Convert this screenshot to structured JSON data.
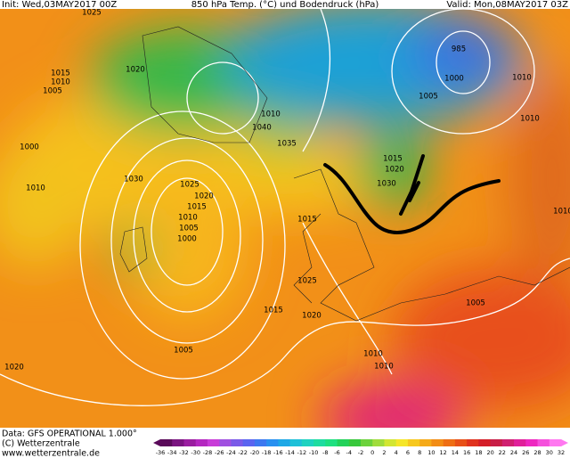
{
  "header": {
    "init": "Init: Wed,03MAY2017 00Z",
    "title": "850 hPa Temp. (°C) und Bodendruck (hPa)",
    "valid": "Valid: Mon,08MAY2017 03Z"
  },
  "isobar_labels": [
    1025,
    1015,
    1010,
    1005,
    1020,
    1000,
    1010,
    1030,
    1025,
    1020,
    1015,
    1010,
    1005,
    1000,
    1040,
    1035,
    1010,
    1015,
    1020,
    1030,
    985,
    1005,
    1000,
    1010,
    1010,
    1025,
    1015,
    1020,
    1005,
    1005,
    1015,
    1010,
    1020,
    1010,
    1010
  ],
  "footer": {
    "data": "Data: GFS OPERATIONAL 1.000°",
    "copyright": "(C) Wetterzentrale",
    "url": "www.wetterzentrale.de"
  },
  "colorbar": {
    "labels": [
      -36,
      -34,
      -32,
      -30,
      -28,
      -26,
      -24,
      -22,
      -20,
      -18,
      -16,
      -14,
      -12,
      -10,
      -8,
      -6,
      -4,
      -2,
      0,
      2,
      4,
      6,
      8,
      10,
      12,
      14,
      16,
      18,
      20,
      22,
      24,
      26,
      28,
      30,
      32
    ]
  }
}
